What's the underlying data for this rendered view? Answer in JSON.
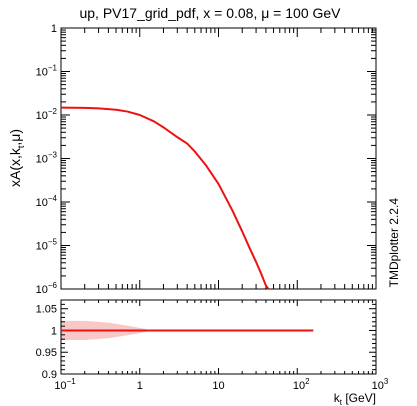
{
  "chart_data": {
    "type": "line",
    "title": "up, PV17_grid_pdf, x = 0.08, μ = 100 GeV",
    "ylabel": "xA(x,k",
    "ylabel_sub": "t",
    "ylabel_tail": ",μ)",
    "xlabel": "k",
    "xlabel_sub": "t",
    "xlabel_tail": " [GeV]",
    "side_label": "TMDplotter 2.2.4",
    "x_scale": "log",
    "xlim": [
      0.1,
      1000
    ],
    "x_ticks": [
      {
        "value": 0.1,
        "base": "10",
        "exp": "−1"
      },
      {
        "value": 1,
        "base": "1",
        "exp": ""
      },
      {
        "value": 10,
        "base": "10",
        "exp": ""
      },
      {
        "value": 100,
        "base": "10",
        "exp": "2"
      },
      {
        "value": 1000,
        "base": "10",
        "exp": "3"
      }
    ],
    "main_panel": {
      "y_scale": "log",
      "ylim": [
        1e-06,
        1
      ],
      "y_ticks": [
        {
          "value": 1,
          "base": "1",
          "exp": ""
        },
        {
          "value": 0.1,
          "base": "10",
          "exp": "−1"
        },
        {
          "value": 0.01,
          "base": "10",
          "exp": "−2"
        },
        {
          "value": 0.001,
          "base": "10",
          "exp": "−3"
        },
        {
          "value": 0.0001,
          "base": "10",
          "exp": "−4"
        },
        {
          "value": 1e-05,
          "base": "10",
          "exp": "−5"
        },
        {
          "value": 1e-06,
          "base": "10",
          "exp": "−6"
        }
      ],
      "series": [
        {
          "color": "#ee1111",
          "x": [
            0.1,
            0.2,
            0.3,
            0.5,
            0.7,
            1.0,
            1.5,
            2.0,
            3.0,
            4.0,
            5.0,
            7.0,
            10,
            15,
            20,
            25,
            30,
            35,
            40,
            43
          ],
          "y": [
            0.0148,
            0.0146,
            0.0142,
            0.0132,
            0.012,
            0.01,
            0.0072,
            0.0052,
            0.0031,
            0.0022,
            0.00145,
            0.00068,
            0.00026,
            6.4e-05,
            2.1e-05,
            8.5e-06,
            4.2e-06,
            2.2e-06,
            1.2e-06,
            8.5e-07
          ]
        }
      ]
    },
    "ratio_panel": {
      "y_scale": "linear",
      "ylim": [
        0.9,
        1.07
      ],
      "y_ticks": [
        {
          "value": 0.9,
          "label": "0.9"
        },
        {
          "value": 0.95,
          "label": "0.95"
        },
        {
          "value": 1,
          "label": "1"
        },
        {
          "value": 1.05,
          "label": "1.05"
        }
      ],
      "ratio_line": {
        "color": "#ee1111",
        "x": [
          0.1,
          160
        ],
        "y": [
          1,
          1
        ]
      },
      "error_band": {
        "color": "#f8c8c8",
        "x": [
          0.1,
          0.2,
          0.4,
          0.7,
          1.0,
          1.3,
          1.6,
          160
        ],
        "upper": [
          1.022,
          1.022,
          1.018,
          1.011,
          1.006,
          1.002,
          1.0005,
          1.0005
        ],
        "lower": [
          0.978,
          0.978,
          0.982,
          0.989,
          0.994,
          0.998,
          0.9995,
          0.9995
        ]
      }
    }
  }
}
